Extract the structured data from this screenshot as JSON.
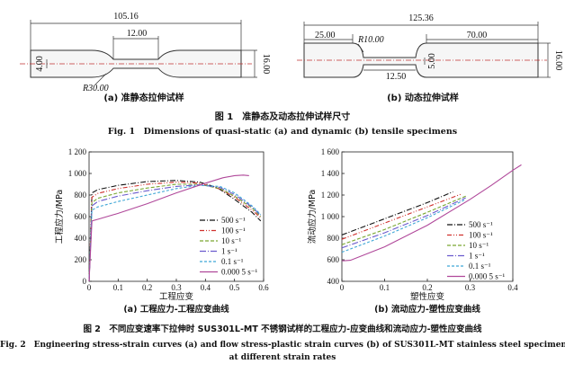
{
  "figure1": {
    "specimen_a": {
      "dim_total": "105.16",
      "dim_gauge": "12.00",
      "dim_width": "16.00",
      "dim_neck": "4.00",
      "dim_radius": "R30.00",
      "caption": "(a) 准静态拉伸试样"
    },
    "specimen_b": {
      "dim_total": "125.36",
      "dim_grip": "25.00",
      "dim_radius": "R10.00",
      "dim_inner": "70.00",
      "dim_neck": "5.00",
      "dim_gauge": "12.50",
      "dim_width": "16.00",
      "caption": "(b) 动态拉伸试样"
    },
    "caption_cn": "图 1　准静态及动态拉伸试样尺寸",
    "caption_en": "Fig. 1　Dimensions of quasi-static (a) and dynamic (b) tensile specimens"
  },
  "figure2": {
    "caption_cn": "图 2　不同应变速率下拉伸时 SUS301L-MT 不锈钢试样的工程应力-应变曲线和流动应力-塑性应变曲线",
    "caption_en_1": "Fig. 2　Engineering stress-strain curves (a) and flow stress-plastic strain curves (b) of SUS301L-MT stainless steel specimen",
    "caption_en_2": "at different strain rates"
  },
  "legend": [
    "500 s⁻¹",
    "100 s⁻¹",
    "10 s⁻¹",
    "1 s⁻¹",
    "0.1 s⁻¹",
    "0.000 5 s⁻¹"
  ],
  "series_colors": [
    "#111111",
    "#d0312d",
    "#7aa832",
    "#6a5acd",
    "#3fa7d6",
    "#b0489a"
  ],
  "chart_data": [
    {
      "type": "line",
      "subtitle": "(a) 工程应力-工程应变曲线",
      "xlabel": "工程应变",
      "ylabel": "工程应力/MPa",
      "xlim": [
        0,
        0.6
      ],
      "ylim": [
        0,
        1200
      ],
      "xticks": [
        "0",
        "0.1",
        "0.2",
        "0.3",
        "0.4",
        "0.5",
        "0.6"
      ],
      "yticks": [
        "0",
        "200",
        "400",
        "600",
        "800",
        "1 000",
        "1 200"
      ],
      "grid": false,
      "legend_position": "right",
      "series": [
        {
          "name": "500 s⁻¹",
          "points": [
            [
              0,
              0
            ],
            [
              0.01,
              820
            ],
            [
              0.03,
              850
            ],
            [
              0.1,
              890
            ],
            [
              0.2,
              925
            ],
            [
              0.3,
              935
            ],
            [
              0.38,
              920
            ],
            [
              0.44,
              870
            ],
            [
              0.5,
              760
            ],
            [
              0.56,
              640
            ],
            [
              0.59,
              560
            ]
          ]
        },
        {
          "name": "100 s⁻¹",
          "points": [
            [
              0,
              0
            ],
            [
              0.01,
              780
            ],
            [
              0.03,
              815
            ],
            [
              0.1,
              860
            ],
            [
              0.2,
              900
            ],
            [
              0.3,
              920
            ],
            [
              0.38,
              910
            ],
            [
              0.45,
              855
            ],
            [
              0.5,
              780
            ],
            [
              0.56,
              660
            ],
            [
              0.59,
              590
            ]
          ]
        },
        {
          "name": "10 s⁻¹",
          "points": [
            [
              0,
              0
            ],
            [
              0.01,
              730
            ],
            [
              0.03,
              770
            ],
            [
              0.1,
              820
            ],
            [
              0.2,
              865
            ],
            [
              0.3,
              900
            ],
            [
              0.38,
              900
            ],
            [
              0.45,
              860
            ],
            [
              0.5,
              790
            ],
            [
              0.56,
              680
            ],
            [
              0.59,
              600
            ]
          ]
        },
        {
          "name": "1 s⁻¹",
          "points": [
            [
              0,
              0
            ],
            [
              0.01,
              700
            ],
            [
              0.03,
              740
            ],
            [
              0.1,
              790
            ],
            [
              0.2,
              840
            ],
            [
              0.3,
              880
            ],
            [
              0.38,
              895
            ],
            [
              0.45,
              870
            ],
            [
              0.5,
              805
            ],
            [
              0.56,
              690
            ],
            [
              0.59,
              610
            ]
          ]
        },
        {
          "name": "0.1 s⁻¹",
          "points": [
            [
              0,
              0
            ],
            [
              0.01,
              660
            ],
            [
              0.03,
              690
            ],
            [
              0.1,
              740
            ],
            [
              0.2,
              800
            ],
            [
              0.3,
              860
            ],
            [
              0.38,
              890
            ],
            [
              0.45,
              880
            ],
            [
              0.5,
              820
            ],
            [
              0.56,
              700
            ],
            [
              0.59,
              620
            ]
          ]
        },
        {
          "name": "0.000 5 s⁻¹",
          "points": [
            [
              0,
              0
            ],
            [
              0.01,
              560
            ],
            [
              0.03,
              575
            ],
            [
              0.1,
              630
            ],
            [
              0.2,
              720
            ],
            [
              0.3,
              820
            ],
            [
              0.4,
              910
            ],
            [
              0.46,
              960
            ],
            [
              0.5,
              980
            ],
            [
              0.53,
              985
            ],
            [
              0.55,
              980
            ]
          ]
        }
      ]
    },
    {
      "type": "line",
      "subtitle": "(b) 流动应力-塑性应变曲线",
      "xlabel": "塑性应变",
      "ylabel": "流动应力/MPa",
      "xlim": [
        0,
        0.4
      ],
      "ylim": [
        400,
        1600
      ],
      "xticks": [
        "0",
        "0.1",
        "0.2",
        "0.3",
        "0.4"
      ],
      "yticks": [
        "400",
        "600",
        "800",
        "1 000",
        "1 200",
        "1 400",
        "1 600"
      ],
      "grid": false,
      "legend_position": "right",
      "series": [
        {
          "name": "500 s⁻¹",
          "points": [
            [
              0,
              830
            ],
            [
              0.1,
              980
            ],
            [
              0.2,
              1130
            ],
            [
              0.26,
              1230
            ]
          ]
        },
        {
          "name": "100 s⁻¹",
          "points": [
            [
              0,
              790
            ],
            [
              0.1,
              940
            ],
            [
              0.2,
              1090
            ],
            [
              0.28,
              1210
            ]
          ]
        },
        {
          "name": "10 s⁻¹",
          "points": [
            [
              0,
              740
            ],
            [
              0.1,
              880
            ],
            [
              0.2,
              1040
            ],
            [
              0.29,
              1190
            ]
          ]
        },
        {
          "name": "1 s⁻¹",
          "points": [
            [
              0,
              710
            ],
            [
              0.1,
              850
            ],
            [
              0.2,
              1010
            ],
            [
              0.29,
              1175
            ]
          ]
        },
        {
          "name": "0.1 s⁻¹",
          "points": [
            [
              0,
              670
            ],
            [
              0.1,
              820
            ],
            [
              0.2,
              990
            ],
            [
              0.29,
              1160
            ]
          ]
        },
        {
          "name": "0.000 5 s⁻¹",
          "points": [
            [
              0,
              590
            ],
            [
              0.02,
              595
            ],
            [
              0.1,
              720
            ],
            [
              0.2,
              920
            ],
            [
              0.3,
              1160
            ],
            [
              0.35,
              1290
            ],
            [
              0.4,
              1430
            ],
            [
              0.42,
              1480
            ]
          ]
        }
      ]
    }
  ]
}
